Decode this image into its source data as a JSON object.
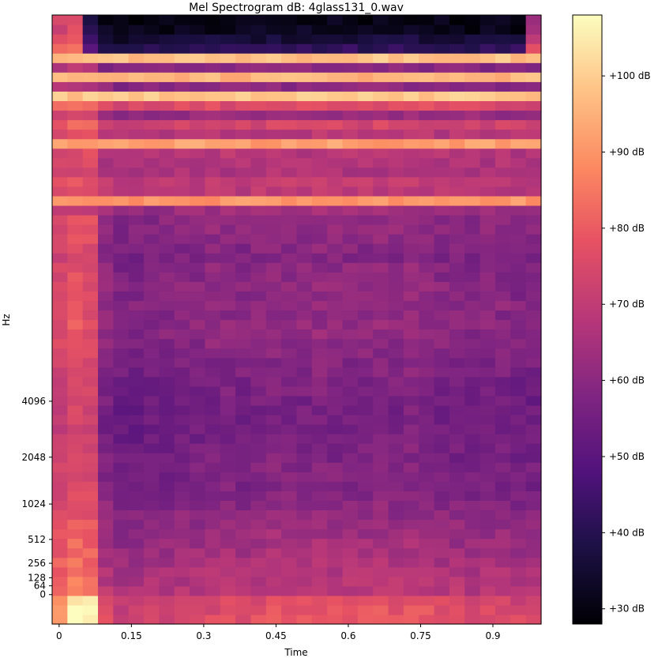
{
  "chart_data": {
    "type": "heatmap",
    "title": "Mel Spectrogram dB: 4glass131_0.wav",
    "xlabel": "Time",
    "ylabel": "Hz",
    "x_ticks": [
      "0",
      "0.15",
      "0.3",
      "0.45",
      "0.6",
      "0.75",
      "0.9"
    ],
    "x_tick_values": [
      0,
      0.15,
      0.3,
      0.45,
      0.6,
      0.75,
      0.9
    ],
    "xlim": [
      -0.0145,
      1.0
    ],
    "y_ticks": [
      "0",
      "64",
      "128",
      "256",
      "512",
      "1024",
      "2048",
      "4096"
    ],
    "y_scale": "mel",
    "colorbar": {
      "ticks": [
        "+30 dB",
        "+40 dB",
        "+50 dB",
        "+60 dB",
        "+70 dB",
        "+80 dB",
        "+90 dB",
        "+100 dB"
      ],
      "tick_values": [
        30,
        40,
        50,
        60,
        70,
        80,
        90,
        100
      ],
      "range_db": [
        28,
        108
      ],
      "colormap": "magma",
      "placement": "right"
    },
    "time_frames": 32,
    "mel_bands": 64,
    "band_profile_db": [
      72,
      71,
      70,
      69,
      68,
      67,
      66,
      65,
      64,
      63,
      62,
      61,
      60,
      59,
      58,
      58,
      58,
      57,
      57,
      56,
      56,
      56,
      56,
      56,
      57,
      57,
      58,
      58,
      59,
      60,
      61,
      61,
      60,
      61,
      60,
      61,
      60,
      60,
      58,
      59,
      60,
      61,
      61,
      63,
      90,
      69,
      70,
      66,
      67,
      68,
      92,
      68,
      74,
      63,
      76,
      99,
      60,
      96,
      59,
      98,
      42,
      36,
      32,
      31
    ],
    "frame_offset_db": [
      14,
      18,
      16,
      0,
      -3,
      -3,
      -2,
      -2,
      -1,
      -1,
      0,
      0,
      -1,
      0,
      1,
      0,
      0,
      1,
      0,
      0,
      0,
      1,
      0,
      1,
      0,
      -1,
      -1,
      -2,
      -1,
      -1,
      -2,
      -2
    ],
    "low_band_boost_db": [
      8,
      18,
      20,
      6,
      2,
      3,
      4,
      3,
      4,
      4,
      4,
      5,
      5,
      5,
      6,
      6,
      6,
      6,
      6,
      6,
      7,
      7,
      7,
      8,
      7,
      6,
      6,
      6,
      5,
      5,
      5,
      4
    ],
    "dark_frames_top": [
      0,
      1,
      31
    ],
    "colorbar_stops": [
      {
        "t": 0.0,
        "color": "#000004"
      },
      {
        "t": 0.13,
        "color": "#1d1147"
      },
      {
        "t": 0.25,
        "color": "#51127c"
      },
      {
        "t": 0.38,
        "color": "#822681"
      },
      {
        "t": 0.5,
        "color": "#b73779"
      },
      {
        "t": 0.63,
        "color": "#e75263"
      },
      {
        "t": 0.75,
        "color": "#fc8961"
      },
      {
        "t": 0.88,
        "color": "#fec488"
      },
      {
        "t": 1.0,
        "color": "#fcfdbf"
      }
    ]
  }
}
